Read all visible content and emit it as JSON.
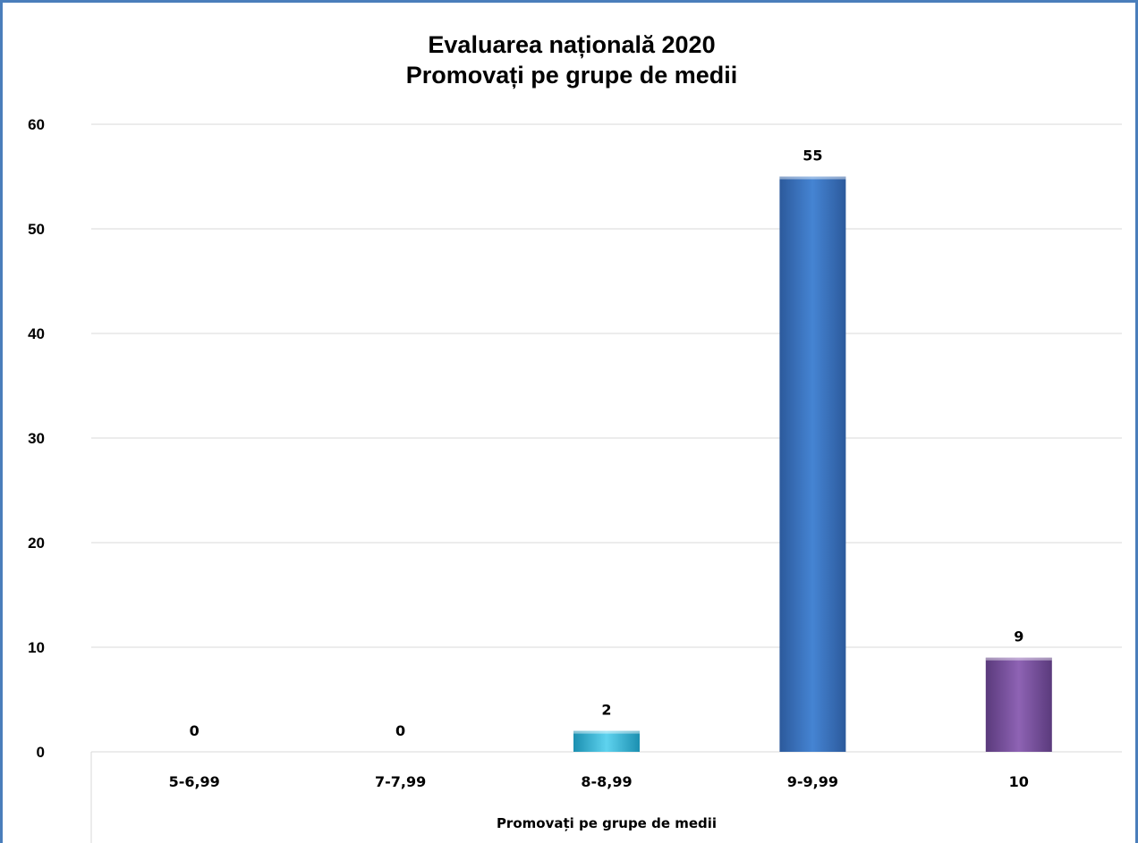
{
  "chart_data": {
    "type": "bar",
    "title": [
      "Evaluarea națională 2020",
      "Promovați pe grupe de medii"
    ],
    "categories": [
      "5-6,99",
      "7-7,99",
      "8-8,99",
      "9-9,99",
      "10"
    ],
    "values": [
      0,
      0,
      2,
      55,
      9
    ],
    "xlabel": "Promovați pe grupe de medii",
    "ylabel": "",
    "ylim": [
      0,
      60
    ],
    "yticks": [
      "0",
      "10",
      "20",
      "30",
      "40",
      "50",
      "60"
    ],
    "grid": true,
    "colors": [
      "#4f81bd",
      "#4f81bd",
      "#31b6d6",
      "#3a6fbf",
      "#7a4f9e"
    ]
  }
}
